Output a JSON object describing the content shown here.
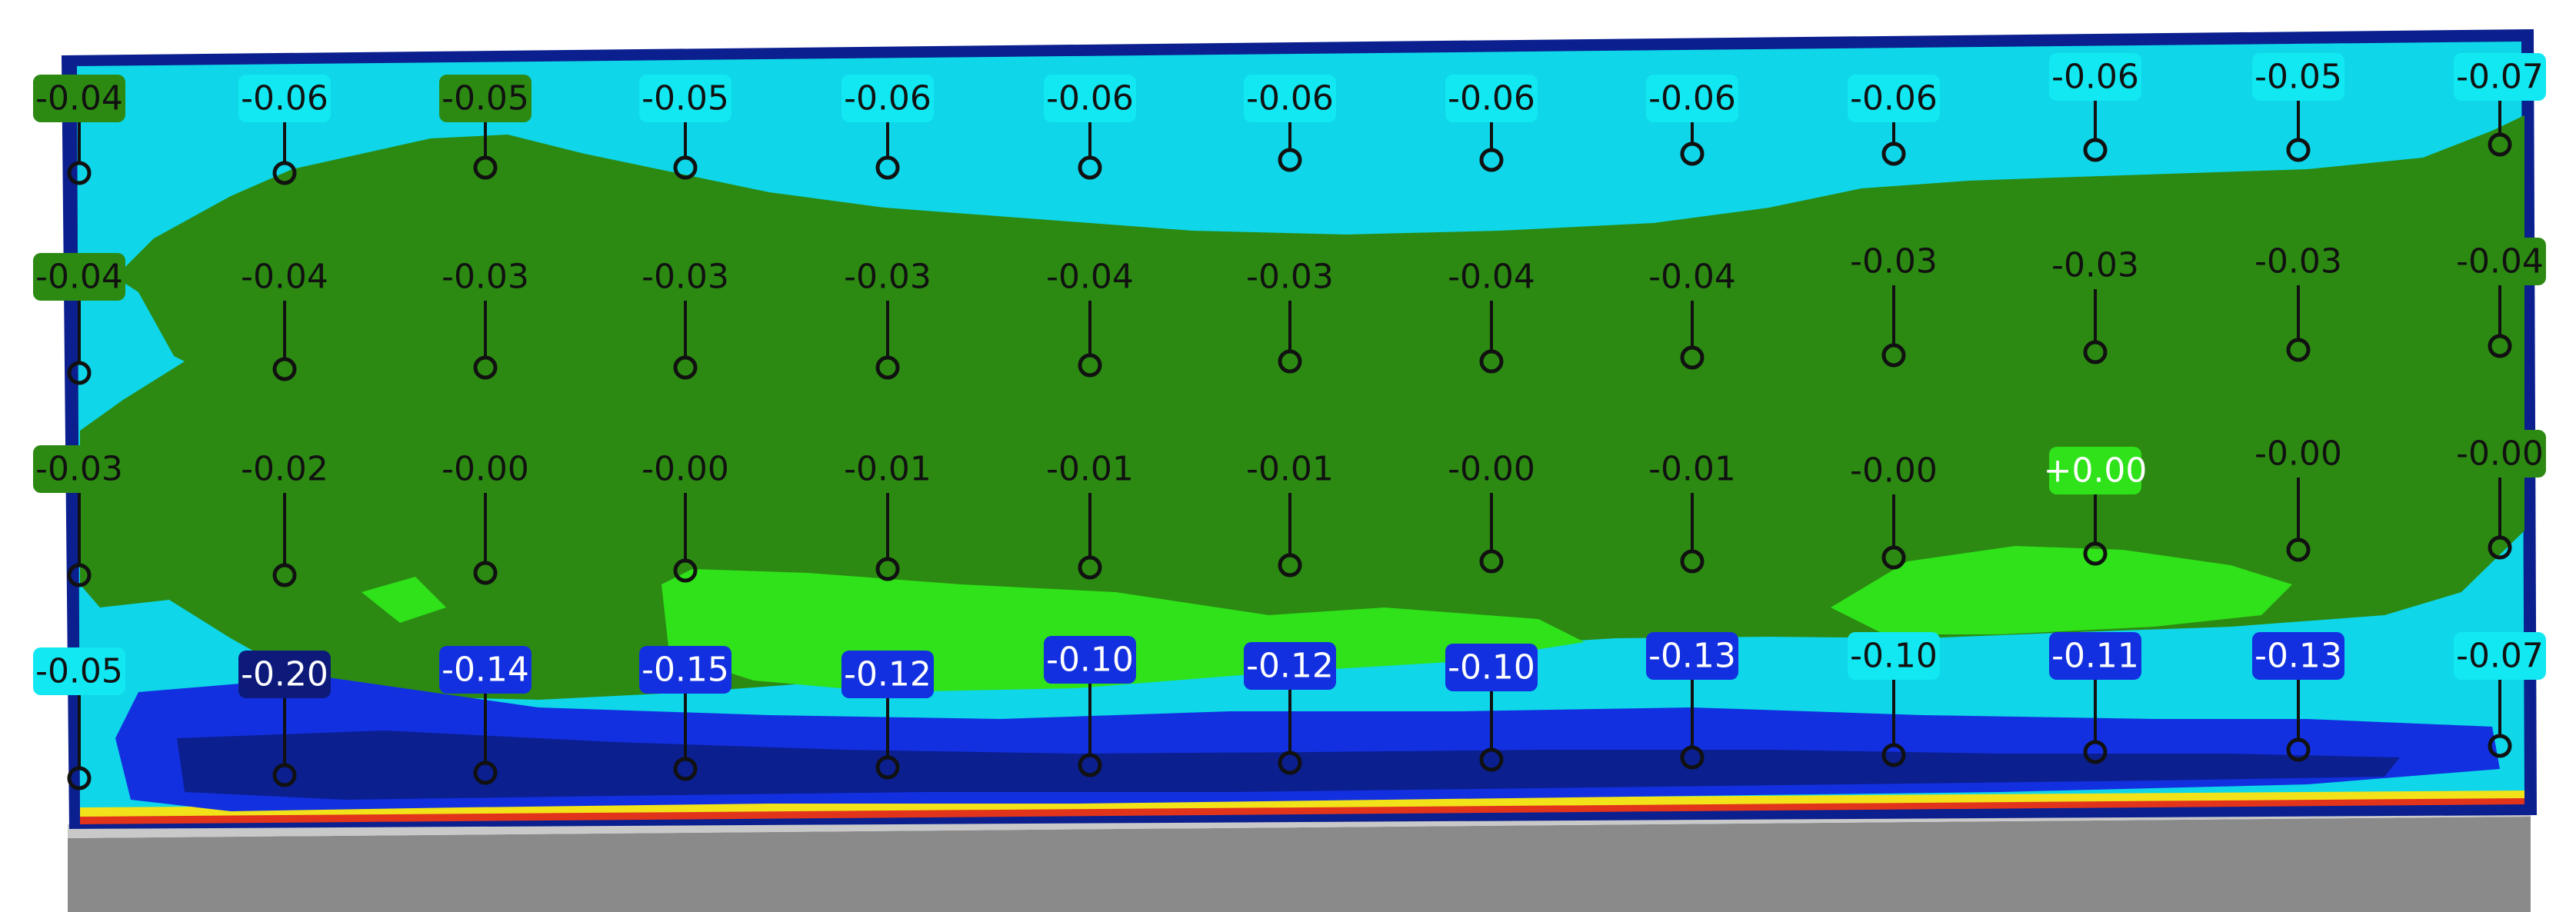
{
  "colors": {
    "background": "#ffffff",
    "frame_gray": "#8a8a8a",
    "frame_light": "#c9c9c9",
    "dark_navy": "#0b1f8f",
    "blue": "#1230e0",
    "cyan": "#0fd6e8",
    "green": "#2c8a12",
    "light_green": "#2fe21a",
    "yellow": "#f2e21a",
    "red": "#e2341a",
    "leader": "#111111"
  },
  "tag_styles": {
    "green": {
      "fill": "#2c8a12",
      "text": "#111111"
    },
    "cyan": {
      "fill": "#12e8f2",
      "text": "#111111"
    },
    "blue": {
      "fill": "#1230e0",
      "text": "#ffffff"
    },
    "navy": {
      "fill": "#0d1a7a",
      "text": "#ffffff"
    },
    "lime": {
      "fill": "#2fe21a",
      "text": "#ffffff"
    }
  },
  "chart_data": {
    "type": "heatmap",
    "rows": [
      {
        "values": [
          "-0.04",
          "-0.06",
          "-0.05",
          "-0.05",
          "-0.06",
          "-0.06",
          "-0.06",
          "-0.06",
          "-0.06",
          "-0.06",
          "-0.06",
          "-0.05",
          "-0.07"
        ],
        "styles": [
          "green",
          "cyan",
          "green",
          "cyan",
          "cyan",
          "cyan",
          "cyan",
          "cyan",
          "cyan",
          "cyan",
          "cyan",
          "cyan",
          "cyan"
        ]
      },
      {
        "values": [
          "-0.04",
          "-0.04",
          "-0.03",
          "-0.03",
          "-0.03",
          "-0.04",
          "-0.03",
          "-0.04",
          "-0.04",
          "-0.03",
          "-0.03",
          "-0.03",
          "-0.04"
        ],
        "styles": [
          "green",
          "green",
          "green",
          "green",
          "green",
          "green",
          "green",
          "green",
          "green",
          "green",
          "green",
          "green",
          "green"
        ]
      },
      {
        "values": [
          "-0.03",
          "-0.02",
          "-0.00",
          "-0.00",
          "-0.01",
          "-0.01",
          "-0.01",
          "-0.00",
          "-0.01",
          "-0.00",
          "+0.00",
          "-0.00",
          "-0.00"
        ],
        "styles": [
          "green",
          "green",
          "green",
          "green",
          "green",
          "green",
          "green",
          "green",
          "green",
          "green",
          "lime",
          "green",
          "green"
        ]
      },
      {
        "values": [
          "-0.05",
          "-0.20",
          "-0.14",
          "-0.15",
          "-0.12",
          "-0.10",
          "-0.12",
          "-0.10",
          "-0.13",
          "-0.10",
          "-0.11",
          "-0.13",
          "-0.07"
        ],
        "styles": [
          "cyan",
          "navy",
          "blue",
          "blue",
          "blue",
          "blue",
          "blue",
          "blue",
          "blue",
          "cyan",
          "blue",
          "blue",
          "cyan"
        ]
      }
    ]
  }
}
